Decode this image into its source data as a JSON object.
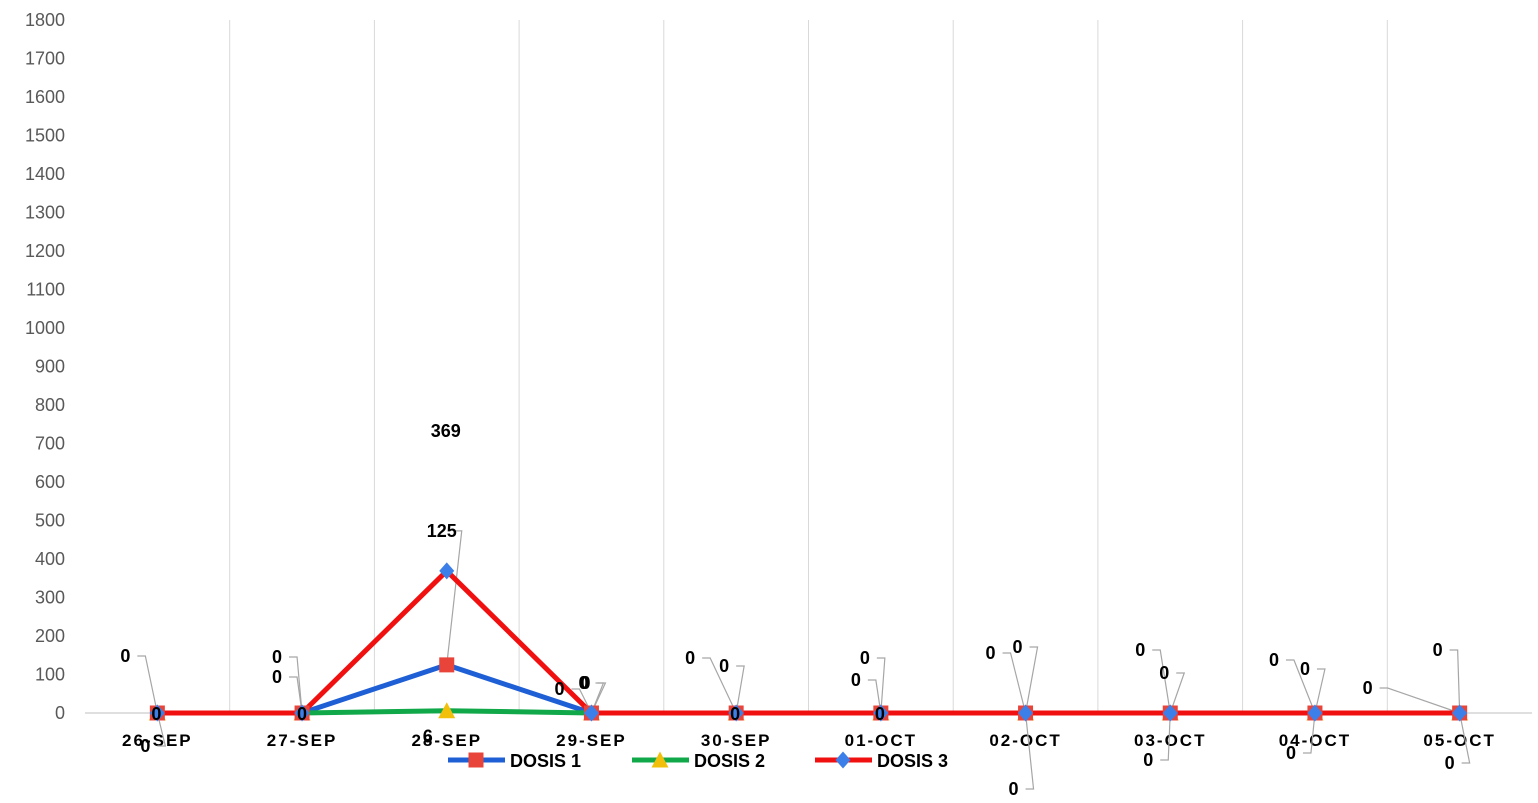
{
  "chart_data": {
    "type": "line",
    "categories": [
      "26-SEP",
      "27-SEP",
      "28-SEP",
      "29-SEP",
      "30-SEP",
      "01-OCT",
      "02-OCT",
      "03-OCT",
      "04-OCT",
      "05-OCT"
    ],
    "ylim": [
      0,
      1800
    ],
    "ytick_step": 100,
    "grid": "vertical",
    "legend_position": "bottom",
    "series": [
      {
        "name": "DOSIS 1",
        "color": "#1f5fd6",
        "marker": "square",
        "marker_color": "#e8443a",
        "values": [
          0,
          0,
          125,
          0,
          0,
          0,
          0,
          0,
          0,
          0
        ]
      },
      {
        "name": "DOSIS 2",
        "color": "#11a84a",
        "marker": "triangle",
        "marker_color": "#f2c00a",
        "values": [
          0,
          0,
          6,
          0,
          0,
          0,
          0,
          0,
          0,
          0
        ]
      },
      {
        "name": "DOSIS 3",
        "color": "#f01010",
        "marker": "diamond",
        "marker_color": "#3d7fe8",
        "values": [
          0,
          0,
          369,
          0,
          0,
          0,
          0,
          0,
          0,
          0
        ]
      }
    ]
  }
}
